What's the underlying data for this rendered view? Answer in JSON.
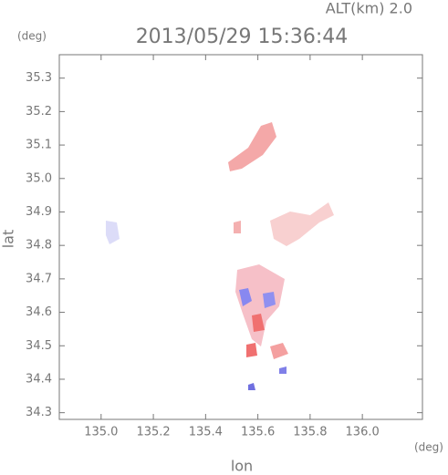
{
  "chart_data": {
    "type": "radar-map",
    "title": "2013/05/29 15:36:44",
    "annotation": "ALT(km) 2.0",
    "x_unit": "(deg)",
    "y_unit": "(deg)",
    "x_label": "lon",
    "y_label": "lat",
    "xlim": [
      134.84,
      136.23
    ],
    "xticks": [
      {
        "value": 135,
        "label": "135.0"
      },
      135.2,
      135.4,
      135.6,
      135.8,
      {
        "value": 136,
        "label": "136.0"
      }
    ],
    "ylim": [
      34.28,
      35.37
    ],
    "yticks": [
      34.3,
      34.4,
      34.5,
      34.6,
      34.7,
      34.8,
      34.9,
      {
        "value": 35,
        "label": "35.0"
      },
      35.1,
      35.2,
      35.3
    ]
  }
}
